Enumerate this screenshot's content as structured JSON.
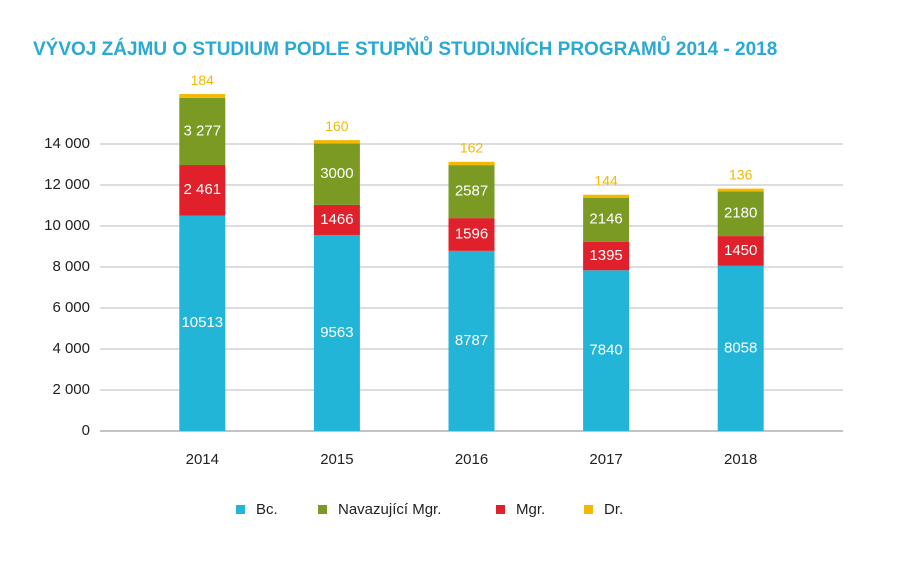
{
  "chart_data": {
    "type": "stacked_bar",
    "title": "VÝVOJ ZÁJMU O STUDIUM PODLE STUPŇŮ STUDIJNÍCH PROGRAMŮ 2014 - 2018",
    "categories": [
      "2014",
      "2015",
      "2016",
      "2017",
      "2018"
    ],
    "series": [
      {
        "name": "Bc.",
        "color": "#22b5d8",
        "values": [
          10513,
          9563,
          8787,
          7840,
          8058
        ]
      },
      {
        "name": "Mgr.",
        "color": "#e0202a",
        "values": [
          2461,
          1466,
          1596,
          1395,
          1450
        ],
        "value_labels": [
          "2 461",
          "1466",
          "1596",
          "1395",
          "1450"
        ]
      },
      {
        "name": "Navazující Mgr.",
        "color": "#7a9a24",
        "values": [
          3277,
          3000,
          2587,
          2146,
          2180
        ],
        "value_labels": [
          "3 277",
          "3000",
          "2587",
          "2146",
          "2180"
        ]
      },
      {
        "name": "Dr.",
        "color": "#f5b800",
        "values": [
          184,
          160,
          162,
          144,
          136
        ]
      }
    ],
    "ylim": [
      0,
      16000
    ],
    "yticks": [
      0,
      {
        "value": 2000,
        "label": "2 000"
      },
      {
        "value": 4000,
        "label": "4 000"
      },
      {
        "value": 6000,
        "label": "6 000"
      },
      {
        "value": 8000,
        "label": "8 000"
      },
      {
        "value": 10000,
        "label": "10 000"
      },
      {
        "value": 12000,
        "label": "12 000"
      },
      {
        "value": 14000,
        "label": "14 000"
      }
    ],
    "grid": true
  }
}
